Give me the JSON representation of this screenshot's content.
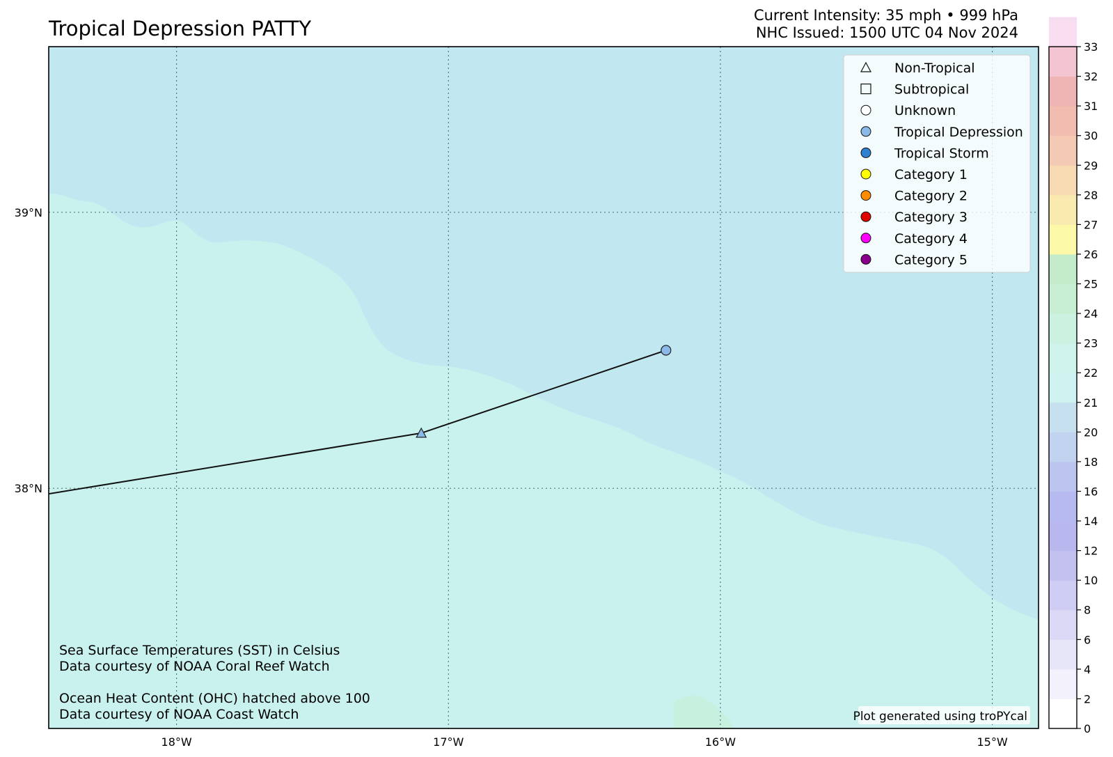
{
  "header": {
    "title": "Tropical Depression PATTY",
    "intensity": "Current Intensity: 35 mph • 999 hPa",
    "issued": "NHC Issued: 1500 UTC 04 Nov 2024"
  },
  "map": {
    "extent": {
      "lon": [
        -18.47,
        -14.83
      ],
      "lat": [
        37.13,
        39.6
      ]
    },
    "lon_ticks": [
      {
        "value": -18,
        "label": "18°W"
      },
      {
        "value": -17,
        "label": "17°W"
      },
      {
        "value": -16,
        "label": "16°W"
      },
      {
        "value": -15,
        "label": "15°W"
      }
    ],
    "lat_ticks": [
      {
        "value": 39,
        "label": "39°N"
      },
      {
        "value": 38,
        "label": "38°N"
      }
    ],
    "gridlines": true,
    "colors": {
      "sst_warm": "#c9f2ef",
      "sst_cool": "#c1e8f0",
      "sst_green": "#c8f0df",
      "track": "#111111"
    },
    "track": [
      {
        "lon": -18.47,
        "lat": 37.98
      },
      {
        "lon": -17.1,
        "lat": 38.2,
        "type": "Non-Tropical"
      },
      {
        "lon": -16.2,
        "lat": 38.5,
        "type": "Tropical Depression"
      }
    ]
  },
  "legend": {
    "items": [
      {
        "label": "Non-Tropical",
        "shape": "triangle",
        "fill": "none"
      },
      {
        "label": "Subtropical",
        "shape": "square",
        "fill": "none"
      },
      {
        "label": "Unknown",
        "shape": "circle",
        "fill": "#ffffff"
      },
      {
        "label": "Tropical Depression",
        "shape": "circle",
        "fill": "#8ab8e8"
      },
      {
        "label": "Tropical Storm",
        "shape": "circle",
        "fill": "#3080d0"
      },
      {
        "label": "Category 1",
        "shape": "circle",
        "fill": "#ffff00"
      },
      {
        "label": "Category 2",
        "shape": "circle",
        "fill": "#ff8c00"
      },
      {
        "label": "Category 3",
        "shape": "circle",
        "fill": "#e00000"
      },
      {
        "label": "Category 4",
        "shape": "circle",
        "fill": "#ff00ff"
      },
      {
        "label": "Category 5",
        "shape": "circle",
        "fill": "#8b008b"
      }
    ]
  },
  "notes": {
    "sst_line1": "Sea Surface Temperatures (SST) in Celsius",
    "sst_line2": "Data courtesy of NOAA Coral Reef Watch",
    "ohc_line1": "Ocean Heat Content (OHC) hatched above 100",
    "ohc_line2": "Data courtesy of NOAA Coast Watch",
    "credit": "Plot generated using troPYcal"
  },
  "colorbar": {
    "labels": [
      "0",
      "2",
      "4",
      "6",
      "8",
      "10",
      "12",
      "14",
      "16",
      "18",
      "20",
      "21",
      "22",
      "23",
      "24",
      "25",
      "26",
      "27",
      "28",
      "29",
      "30",
      "31",
      "32",
      "33"
    ],
    "band_colors": [
      "#ffffff",
      "#f3f1fc",
      "#e7e6f9",
      "#dbd9f6",
      "#cfcdf3",
      "#c3c1f0",
      "#b8b8ee",
      "#b6baf0",
      "#bcc5f0",
      "#c2d3f0",
      "#c6e0f0",
      "#cef2f0",
      "#cef3ea",
      "#cbf2e0",
      "#c8efd4",
      "#c4ecca",
      "#fbf9a8",
      "#f9eab0",
      "#f7dab2",
      "#f4cab4",
      "#f1bdb0",
      "#efb4b4",
      "#f3c4d2",
      "#f8dcef"
    ]
  }
}
